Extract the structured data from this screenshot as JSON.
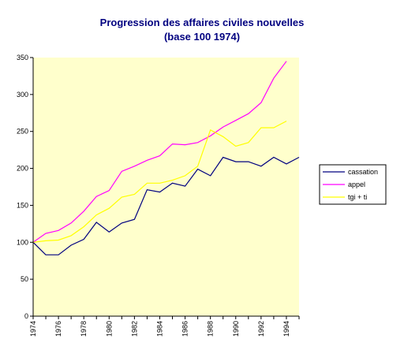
{
  "chart_data": {
    "type": "line",
    "title": "Progression des affaires civiles nouvelles",
    "subtitle": "(base 100 1974)",
    "x": [
      1974,
      1975,
      1976,
      1977,
      1978,
      1979,
      1980,
      1981,
      1982,
      1983,
      1984,
      1985,
      1986,
      1987,
      1988,
      1989,
      1990,
      1991,
      1992,
      1993,
      1994,
      1995
    ],
    "x_tick_labels": [
      "1974",
      "1976",
      "1978",
      "1980",
      "1982",
      "1984",
      "1986",
      "1988",
      "1990",
      "1992",
      "1994"
    ],
    "y_tick_labels": [
      "0",
      "50",
      "100",
      "150",
      "200",
      "250",
      "300",
      "350"
    ],
    "ylim": [
      0,
      350
    ],
    "xlim": [
      1974,
      1995
    ],
    "series": [
      {
        "name": "cassation",
        "color": "#000080",
        "values": [
          100,
          83,
          83,
          96,
          104,
          127,
          114,
          126,
          131,
          171,
          168,
          180,
          176,
          199,
          190,
          215,
          209,
          209,
          203,
          215,
          206,
          215
        ]
      },
      {
        "name": "appel",
        "color": "#ff00ff",
        "values": [
          100,
          112,
          116,
          126,
          142,
          162,
          170,
          196,
          203,
          211,
          217,
          233,
          232,
          235,
          244,
          256,
          265,
          274,
          289,
          322,
          345,
          null
        ]
      },
      {
        "name": "tgi + ti",
        "color": "#ffff00",
        "values": [
          100,
          102,
          103,
          109,
          121,
          137,
          146,
          161,
          165,
          180,
          180,
          184,
          190,
          203,
          252,
          243,
          230,
          235,
          255,
          255,
          264,
          null
        ]
      }
    ],
    "plot_background": "#ffffcc",
    "legend_position": "right",
    "grid": false
  }
}
